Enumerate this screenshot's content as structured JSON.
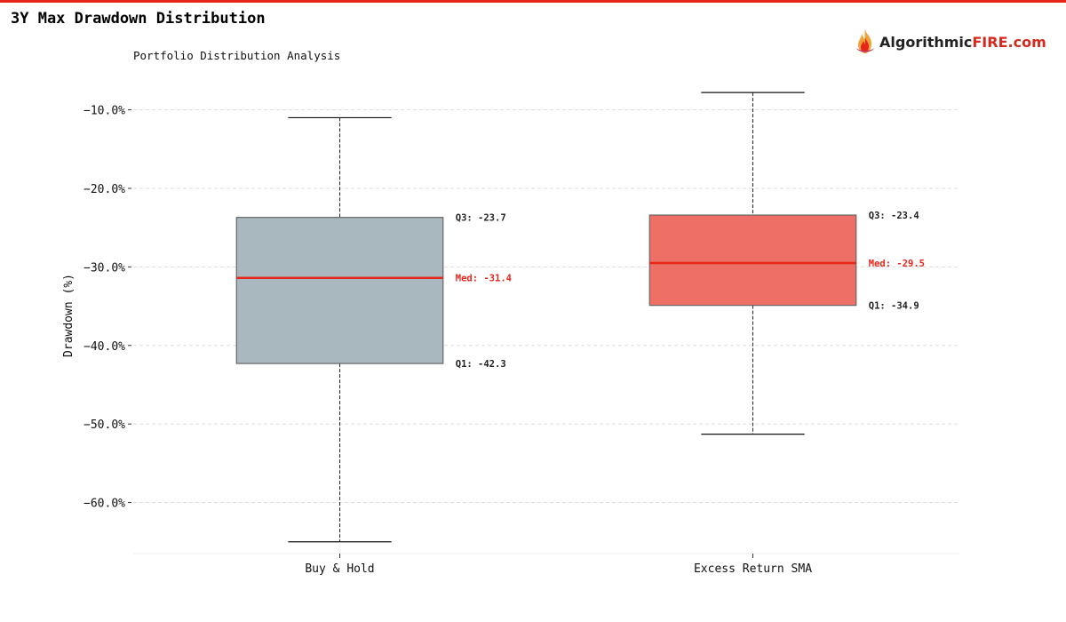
{
  "header": {
    "title": "3Y Max Drawdown Distribution",
    "brand_name": "Algorithmic",
    "brand_highlight": "FIRE",
    "brand_suffix": ".com",
    "accent_color": "#e8251a"
  },
  "chart_data": {
    "type": "box",
    "subtitle": "Portfolio Distribution Analysis",
    "ylabel": "Drawdown (%)",
    "xlabel": "",
    "ylim": [
      -66.5,
      -6.2
    ],
    "yticks": [
      -10,
      -20,
      -30,
      -40,
      -50,
      -60
    ],
    "ytick_labels": [
      "−10.0%",
      "−20.0%",
      "−30.0%",
      "−40.0%",
      "−50.0%",
      "−60.0%"
    ],
    "grid": true,
    "categories": [
      "Buy & Hold",
      "Excess Return SMA"
    ],
    "boxes": [
      {
        "whisker_low": -65.0,
        "q1": -42.3,
        "median": -31.4,
        "q3": -23.7,
        "whisker_high": -11.0,
        "color": "#a9b7bf",
        "q1_label": "Q1: -42.3",
        "median_label": "Med: -31.4",
        "q3_label": "Q3: -23.7"
      },
      {
        "whisker_low": -51.3,
        "q1": -34.9,
        "median": -29.5,
        "q3": -23.4,
        "whisker_high": -7.8,
        "color": "#ee6f66",
        "q1_label": "Q1: -34.9",
        "median_label": "Med: -29.5",
        "q3_label": "Q3: -23.4"
      }
    ],
    "median_color": "#e8251a"
  }
}
